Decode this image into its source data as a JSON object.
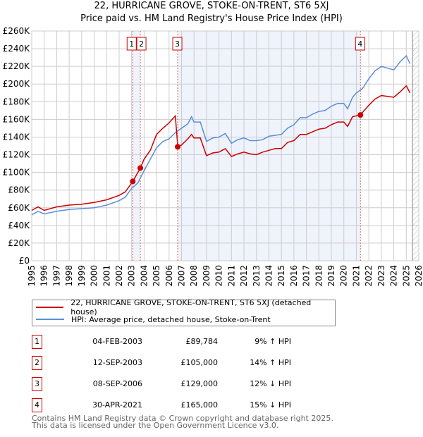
{
  "title_line1": "22, HURRICANE GROVE, STOKE-ON-TRENT, ST6 5XJ",
  "title_line2": "Price paid vs. HM Land Registry's House Price Index (HPI)",
  "chart_data": {
    "type": "line",
    "title": "22, HURRICANE GROVE, STOKE-ON-TRENT, ST6 5XJ — Price paid vs. HM Land Registry's House Price Index (HPI)",
    "xlim": [
      1995,
      2026
    ],
    "ylim": [
      0,
      260000
    ],
    "x_ticks": [
      "1995",
      "1996",
      "1997",
      "1998",
      "1999",
      "2000",
      "2001",
      "2002",
      "2003",
      "2004",
      "2005",
      "2006",
      "2007",
      "2008",
      "2009",
      "2010",
      "2011",
      "2012",
      "2013",
      "2014",
      "2015",
      "2016",
      "2017",
      "2018",
      "2019",
      "2020",
      "2021",
      "2022",
      "2023",
      "2024",
      "2025",
      "2026"
    ],
    "y_ticks": [
      "£0",
      "£20K",
      "£40K",
      "£60K",
      "£80K",
      "£100K",
      "£120K",
      "£140K",
      "£160K",
      "£180K",
      "£200K",
      "£220K",
      "£240K",
      "£260K"
    ],
    "grid": true,
    "series": [
      {
        "name": "22, HURRICANE GROVE, STOKE-ON-TRENT, ST6 5XJ (detached house)",
        "color": "#cc0000",
        "x": [
          1995,
          1995.5,
          1996,
          1997,
          1998,
          1999,
          2000,
          2001,
          2002,
          2002.5,
          2003.1,
          2003.7,
          2004,
          2004.5,
          2005,
          2005.5,
          2006,
          2006.5,
          2006.7,
          2007,
          2007.5,
          2007.8,
          2008,
          2008.5,
          2009,
          2009.5,
          2010,
          2010.5,
          2011,
          2011.5,
          2012,
          2012.5,
          2013,
          2013.5,
          2014,
          2014.5,
          2015,
          2015.5,
          2016,
          2016.5,
          2017,
          2017.5,
          2018,
          2018.5,
          2019,
          2019.5,
          2020,
          2020.3,
          2020.7,
          2021.3,
          2021.5,
          2022,
          2022.5,
          2023,
          2023.5,
          2024,
          2024.5,
          2025,
          2025.3
        ],
        "y": [
          57,
          61,
          57,
          61,
          63,
          64,
          66,
          69,
          74,
          78,
          89.8,
          105,
          115,
          125,
          143,
          150,
          156,
          164,
          129,
          131,
          138,
          143,
          139,
          139,
          119,
          122,
          123,
          127,
          118,
          121,
          123,
          121,
          120,
          123,
          125,
          127,
          127,
          134,
          136,
          143,
          143,
          146,
          149,
          150,
          154,
          157,
          157,
          152,
          163,
          165,
          168,
          176,
          183,
          187,
          186,
          185,
          191,
          198,
          190
        ]
      },
      {
        "name": "HPI: Average price, detached house, Stoke-on-Trent",
        "color": "#5b8fd4",
        "x": [
          1995,
          1995.5,
          1996,
          1997,
          1998,
          1999,
          2000,
          2001,
          2002,
          2002.5,
          2003,
          2003.5,
          2004,
          2004.5,
          2005,
          2005.5,
          2006,
          2006.5,
          2007,
          2007.5,
          2007.8,
          2008,
          2008.5,
          2009,
          2009.5,
          2010,
          2010.5,
          2011,
          2011.5,
          2012,
          2012.5,
          2013,
          2013.5,
          2014,
          2014.5,
          2015,
          2015.5,
          2016,
          2016.5,
          2017,
          2017.5,
          2018,
          2018.5,
          2019,
          2019.5,
          2020,
          2020.3,
          2020.7,
          2021,
          2021.5,
          2022,
          2022.5,
          2023,
          2023.5,
          2024,
          2024.5,
          2025,
          2025.3
        ],
        "y": [
          52,
          56,
          53,
          56,
          58,
          59,
          60,
          63,
          68,
          72,
          82,
          88,
          102,
          115,
          128,
          135,
          138,
          145,
          150,
          155,
          163,
          157,
          157,
          135,
          139,
          140,
          144,
          133,
          137,
          139,
          136,
          136,
          137,
          141,
          142,
          143,
          150,
          154,
          162,
          162,
          166,
          169,
          170,
          175,
          178,
          178,
          172,
          185,
          190,
          195,
          206,
          215,
          220,
          218,
          216,
          225,
          232,
          223
        ]
      }
    ],
    "y_unit": "£K",
    "sales": [
      {
        "label": "1",
        "x": 2003.09,
        "y": 89.784
      },
      {
        "label": "2",
        "x": 2003.7,
        "y": 105
      },
      {
        "label": "3",
        "x": 2006.69,
        "y": 129
      },
      {
        "label": "4",
        "x": 2021.33,
        "y": 165
      }
    ],
    "legend_position": "below"
  },
  "legend": [
    {
      "label": "22, HURRICANE GROVE, STOKE-ON-TRENT, ST6 5XJ (detached house)",
      "color": "#cc0000"
    },
    {
      "label": "HPI: Average price, detached house, Stoke-on-Trent",
      "color": "#5b8fd4"
    }
  ],
  "transactions": [
    {
      "num": "1",
      "date": "04-FEB-2003",
      "price": "£89,784",
      "hpi": "9% ↑ HPI"
    },
    {
      "num": "2",
      "date": "12-SEP-2003",
      "price": "£105,000",
      "hpi": "14% ↑ HPI"
    },
    {
      "num": "3",
      "date": "08-SEP-2006",
      "price": "£129,000",
      "hpi": "12% ↓ HPI"
    },
    {
      "num": "4",
      "date": "30-APR-2021",
      "price": "£165,000",
      "hpi": "15% ↓ HPI"
    }
  ],
  "footer_line1": "Contains HM Land Registry data © Crown copyright and database right 2025.",
  "footer_line2": "This data is licensed under the Open Government Licence v3.0."
}
